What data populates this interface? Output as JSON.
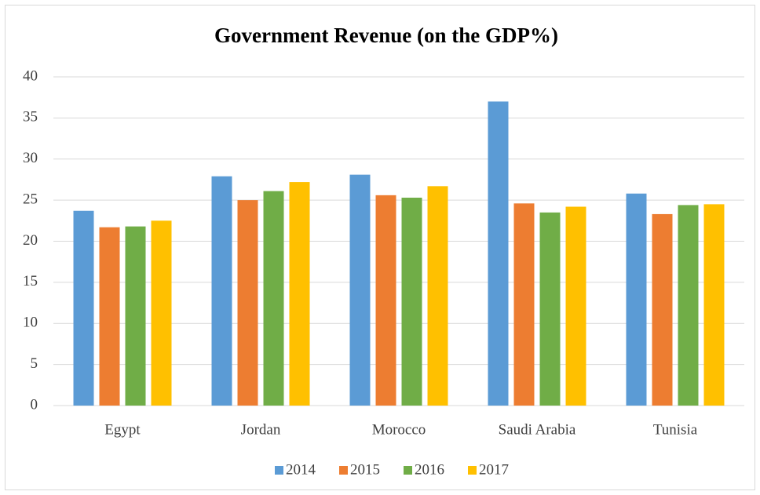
{
  "chart_data": {
    "type": "bar",
    "title": "Government Revenue (on the GDP%)",
    "categories": [
      "Egypt",
      "Jordan",
      "Morocco",
      "Saudi Arabia",
      "Tunisia"
    ],
    "series": [
      {
        "name": "2014",
        "color": "#5b9bd5",
        "values": [
          23.7,
          27.9,
          28.1,
          37.0,
          25.8
        ]
      },
      {
        "name": "2015",
        "color": "#ed7d31",
        "values": [
          21.7,
          25.0,
          25.6,
          24.6,
          23.3
        ]
      },
      {
        "name": "2016",
        "color": "#70ad47",
        "values": [
          21.8,
          26.1,
          25.3,
          23.5,
          24.4
        ]
      },
      {
        "name": "2017",
        "color": "#ffc000",
        "values": [
          22.5,
          27.2,
          26.7,
          24.2,
          24.5
        ]
      }
    ],
    "ylim": [
      0,
      40
    ],
    "yticks": [
      0,
      5,
      10,
      15,
      20,
      25,
      30,
      35,
      40
    ],
    "grid": true,
    "legend": "bottom"
  }
}
